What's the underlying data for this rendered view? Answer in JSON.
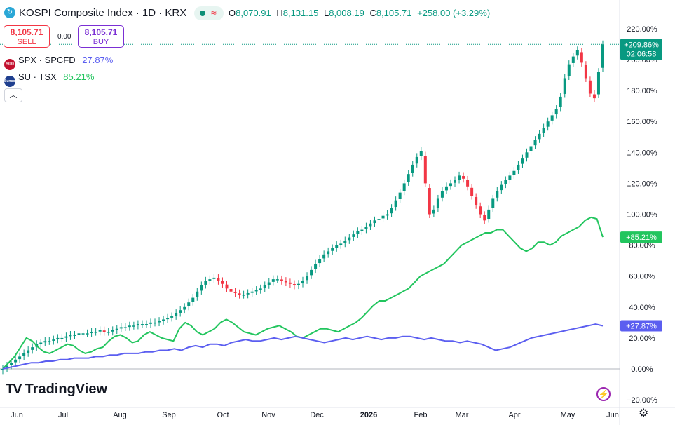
{
  "header": {
    "title": "KOSPI Composite Index · 1D · KRX",
    "logo_glyph": "↻",
    "ohlc": [
      {
        "k": "O",
        "v": "8,070.91"
      },
      {
        "k": "H",
        "v": "8,131.15"
      },
      {
        "k": "L",
        "v": "8,008.19"
      },
      {
        "k": "C",
        "v": "8,105.71"
      }
    ],
    "change": "+258.00 (+3.29%)",
    "status_icons": [
      "market-open-dot",
      "wave-icon"
    ]
  },
  "trade": {
    "sell_price": "8,105.71",
    "sell_label": "SELL",
    "spread": "0.00",
    "buy_price": "8,105.71",
    "buy_label": "BUY"
  },
  "legend": [
    {
      "symbol": "SPX · SPCFD",
      "value": "27.87%",
      "icon_text": "500",
      "icon_color": "#c2102e",
      "value_color": "#5b5ef0"
    },
    {
      "symbol": "SU · TSX",
      "value": "85.21%",
      "icon_text": "Suncor",
      "icon_color": "#1f3f8f",
      "value_color": "#22c55e"
    }
  ],
  "brand": "TradingView",
  "chart_data": {
    "type": "line",
    "x_ticks": [
      "Jun",
      "Jul",
      "Aug",
      "Sep",
      "Oct",
      "Nov",
      "Dec",
      "2026",
      "Feb",
      "Mar",
      "Apr",
      "May",
      "Jun"
    ],
    "y_ticks": [
      "220.00%",
      "200.00%",
      "180.00%",
      "160.00%",
      "140.00%",
      "120.00%",
      "100.00%",
      "80.00%",
      "60.00%",
      "40.00%",
      "20.00%",
      "0.00%",
      "−20.00%"
    ],
    "ylim": [
      -20,
      220
    ],
    "series": [
      {
        "name": "KOSPI Composite Index",
        "type": "candlestick",
        "colors": {
          "up": "#089981",
          "down": "#f23645"
        },
        "values": [
          0,
          2,
          4,
          6,
          8,
          10,
          12,
          14,
          16,
          17,
          18,
          18,
          19,
          20,
          20,
          21,
          22,
          22,
          23,
          23,
          23,
          24,
          24,
          25,
          24,
          24,
          25,
          26,
          27,
          27,
          28,
          28,
          29,
          29,
          29,
          30,
          30,
          31,
          32,
          33,
          34,
          36,
          38,
          40,
          43,
          46,
          50,
          54,
          57,
          58,
          59,
          57,
          55,
          52,
          50,
          49,
          48,
          48,
          49,
          50,
          51,
          52,
          54,
          56,
          58,
          58,
          57,
          56,
          55,
          54,
          55,
          57,
          60,
          64,
          68,
          71,
          74,
          76,
          78,
          80,
          81,
          83,
          85,
          87,
          89,
          90,
          92,
          94,
          96,
          97,
          99,
          100,
          104,
          109,
          114,
          120,
          126,
          132,
          137,
          141,
          120,
          100,
          103,
          110,
          115,
          118,
          120,
          122,
          125,
          123,
          118,
          112,
          106,
          100,
          96,
          103,
          110,
          115,
          119,
          122,
          125,
          128,
          132,
          136,
          140,
          144,
          148,
          152,
          156,
          160,
          164,
          168,
          176,
          188,
          197,
          202,
          206,
          198,
          188,
          178,
          175,
          192,
          209.86
        ]
      },
      {
        "name": "SU · TSX",
        "values": [
          0,
          4,
          8,
          14,
          20,
          18,
          14,
          11,
          10,
          12,
          14,
          16,
          15,
          12,
          10,
          11,
          13,
          14,
          18,
          21,
          22,
          20,
          17,
          18,
          22,
          24,
          22,
          20,
          19,
          18,
          26,
          30,
          28,
          24,
          22,
          24,
          26,
          30,
          32,
          30,
          27,
          24,
          23,
          22,
          24,
          26,
          27,
          28,
          26,
          24,
          21,
          20,
          22,
          24,
          26,
          26,
          25,
          24,
          26,
          28,
          30,
          33,
          37,
          41,
          44,
          44,
          46,
          48,
          50,
          52,
          56,
          60,
          62,
          64,
          66,
          68,
          72,
          76,
          80,
          82,
          84,
          86,
          88,
          88,
          90,
          90,
          86,
          82,
          78,
          76,
          78,
          82,
          82,
          80,
          82,
          86,
          88,
          90,
          92,
          96,
          98,
          97,
          85.21
        ]
      },
      {
        "name": "SPX · SPCFD",
        "values": [
          0,
          1,
          2,
          3,
          4,
          4,
          5,
          5,
          6,
          6,
          7,
          7,
          7,
          8,
          8,
          9,
          9,
          10,
          10,
          10,
          11,
          11,
          12,
          12,
          13,
          12,
          14,
          15,
          14,
          16,
          16,
          15,
          17,
          18,
          19,
          18,
          18,
          19,
          20,
          19,
          20,
          21,
          20,
          19,
          18,
          17,
          18,
          19,
          20,
          19,
          20,
          21,
          20,
          19,
          20,
          20,
          21,
          21,
          20,
          19,
          20,
          19,
          18,
          18,
          17,
          18,
          17,
          16,
          14,
          12,
          13,
          14,
          16,
          18,
          20,
          21,
          22,
          23,
          24,
          25,
          26,
          27,
          28,
          29,
          27.87
        ]
      }
    ],
    "badges": [
      {
        "text": "+209.86%",
        "sub": "02:06:58",
        "color": "#089981",
        "value": 209.86
      },
      {
        "text": "+85.21%",
        "color": "#22c55e",
        "value": 85.21
      },
      {
        "text": "+27.87%",
        "color": "#5b5ef0",
        "value": 27.87
      }
    ]
  }
}
